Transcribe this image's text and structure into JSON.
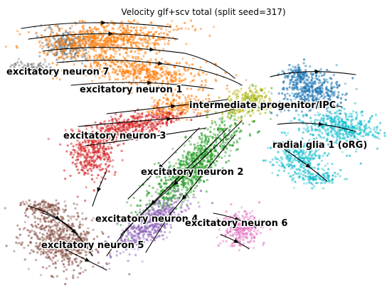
{
  "chart_data": {
    "type": "scatter",
    "title": "Velocity glf+scv total (split seed=317)",
    "xlabel": "",
    "ylabel": "",
    "axes_visible": false,
    "grid": false,
    "legend": "on data",
    "overlay": "velocity streamlines",
    "clusters": [
      {
        "name": "excitatory neuron 7",
        "color": "#7f7f7f"
      },
      {
        "name": "excitatory neuron 1",
        "color": "#ff7f0e"
      },
      {
        "name": "intermediate progenitor/IPC",
        "color": "#bcbd22"
      },
      {
        "name": "excitatory neuron 3",
        "color": "#d62728"
      },
      {
        "name": "radial glia 1 (oRG)",
        "color": "#17becf"
      },
      {
        "name": "excitatory neuron 2",
        "color": "#2ca02c"
      },
      {
        "name": "excitatory neuron 4",
        "color": "#9467bd"
      },
      {
        "name": "excitatory neuron 6",
        "color": "#e377c2"
      },
      {
        "name": "excitatory neuron 5",
        "color": "#8c564b"
      },
      {
        "name": "",
        "color": "#1f77b4"
      }
    ]
  }
}
